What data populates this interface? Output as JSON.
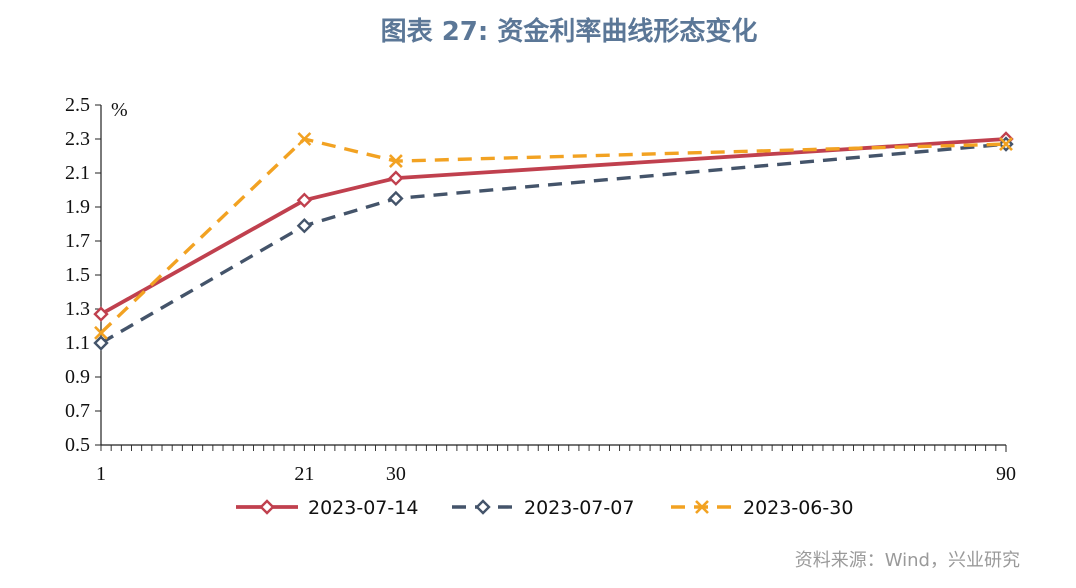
{
  "chart_data": {
    "type": "line",
    "title": "图表 27: 资金利率曲线形态变化",
    "unit_label": "%",
    "x": [
      1,
      21,
      30,
      90
    ],
    "x_tick_labels": [
      "1",
      "21",
      "30",
      "90"
    ],
    "xlim": [
      1,
      90
    ],
    "ylim": [
      0.5,
      2.5
    ],
    "y_ticks": [
      0.5,
      0.7,
      0.9,
      1.1,
      1.3,
      1.5,
      1.7,
      1.9,
      2.1,
      2.3,
      2.5
    ],
    "y_tick_labels": [
      "0.5",
      "0.7",
      "0.9",
      "1.1",
      "1.3",
      "1.5",
      "1.7",
      "1.9",
      "2.1",
      "2.3",
      "2.5"
    ],
    "grid": false,
    "legend_position": "bottom",
    "series": [
      {
        "name": "2023-07-14",
        "values": [
          1.27,
          1.94,
          2.07,
          2.3
        ],
        "color": "#c0404e",
        "dash": "solid",
        "marker": "diamond"
      },
      {
        "name": "2023-07-07",
        "values": [
          1.1,
          1.79,
          1.95,
          2.27
        ],
        "color": "#44546a",
        "dash": "dash",
        "marker": "diamond"
      },
      {
        "name": "2023-06-30",
        "values": [
          1.16,
          2.3,
          2.17,
          2.27
        ],
        "color": "#f2a222",
        "dash": "dash",
        "marker": "cross"
      }
    ],
    "source": "资料来源：Wind，兴业研究"
  }
}
